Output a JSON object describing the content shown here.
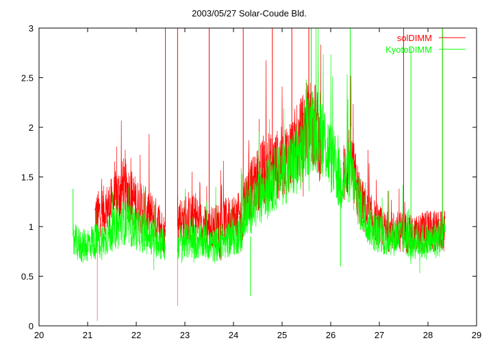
{
  "chart_data": {
    "type": "line",
    "title": "2003/05/27 Solar-Coude Bld.",
    "xlabel": "",
    "ylabel": "",
    "xlim": [
      20,
      29
    ],
    "ylim": [
      0,
      3
    ],
    "x_ticks": [
      "20",
      "21",
      "22",
      "23",
      "24",
      "25",
      "26",
      "27",
      "28",
      "29"
    ],
    "y_ticks": [
      "0",
      "0.5",
      "1",
      "1.5",
      "2",
      "2.5",
      "3"
    ],
    "grid": false,
    "legend_position": "top-right",
    "series": [
      {
        "name": "solDIMM",
        "color": "#ff0000",
        "segments": [
          {
            "x": [
              21.15,
              21.3,
              21.45,
              21.6,
              21.75,
              21.9,
              22.05,
              22.2,
              22.35,
              22.5,
              22.6
            ],
            "y": [
              1.1,
              1.15,
              1.2,
              1.3,
              1.4,
              1.3,
              1.2,
              1.15,
              1.1,
              1.0,
              0.9
            ]
          },
          {
            "x": [
              22.85,
              23.0,
              23.2,
              23.4,
              23.6,
              23.8,
              24.0,
              24.2
            ],
            "y": [
              1.1,
              1.05,
              1.1,
              1.0,
              1.0,
              1.05,
              1.1,
              1.1
            ]
          },
          {
            "x": [
              24.2,
              24.4,
              24.6,
              24.8,
              25.0,
              25.2,
              25.4,
              25.55,
              25.7,
              25.8
            ],
            "y": [
              1.25,
              1.4,
              1.55,
              1.6,
              1.65,
              1.75,
              1.9,
              2.1,
              2.0,
              1.8
            ]
          },
          {
            "x": [
              26.25,
              26.4,
              26.55,
              26.7,
              26.9,
              27.1,
              27.3,
              27.5,
              27.7,
              27.9,
              28.1,
              28.3,
              28.35
            ],
            "y": [
              1.5,
              1.7,
              1.35,
              1.15,
              1.05,
              0.95,
              0.95,
              0.95,
              0.9,
              0.95,
              0.95,
              0.95,
              0.95
            ]
          }
        ],
        "spikes": [
          {
            "x": 21.2,
            "y0": 1.1,
            "y1": 0.05
          },
          {
            "x": 22.6,
            "y0": 1.0,
            "y1": 3.0
          },
          {
            "x": 22.85,
            "y0": 1.0,
            "y1": 3.0
          },
          {
            "x": 22.85,
            "y0": 1.0,
            "y1": 0.2
          },
          {
            "x": 23.5,
            "y0": 1.1,
            "y1": 3.0
          },
          {
            "x": 24.2,
            "y0": 1.2,
            "y1": 3.0
          },
          {
            "x": 24.8,
            "y0": 1.6,
            "y1": 3.0
          },
          {
            "x": 25.2,
            "y0": 1.8,
            "y1": 3.0
          },
          {
            "x": 25.55,
            "y0": 2.0,
            "y1": 3.0
          },
          {
            "x": 27.5,
            "y0": 1.0,
            "y1": 3.0
          },
          {
            "x": 28.3,
            "y0": 1.0,
            "y1": 3.0
          }
        ]
      },
      {
        "name": "KyotoDIMM",
        "color": "#00ff00",
        "segments": [
          {
            "x": [
              20.7,
              20.9,
              21.1,
              21.3,
              21.5,
              21.7,
              21.9,
              22.1,
              22.3,
              22.5,
              22.6
            ],
            "y": [
              0.85,
              0.8,
              0.85,
              0.85,
              0.95,
              1.05,
              1.0,
              0.95,
              0.9,
              0.85,
              0.8
            ]
          },
          {
            "x": [
              22.85,
              23.0,
              23.2,
              23.4,
              23.6,
              23.8,
              24.0,
              24.2
            ],
            "y": [
              0.85,
              0.85,
              0.85,
              0.85,
              0.8,
              0.85,
              0.9,
              0.95
            ]
          },
          {
            "x": [
              24.2,
              24.4,
              24.6,
              24.8,
              25.0,
              25.2,
              25.4,
              25.6,
              25.8,
              26.2,
              26.4,
              26.55
            ],
            "y": [
              1.1,
              1.2,
              1.35,
              1.45,
              1.55,
              1.6,
              1.75,
              2.0,
              1.95,
              1.45,
              1.55,
              1.3
            ]
          },
          {
            "x": [
              26.55,
              26.7,
              26.9,
              27.1,
              27.3,
              27.5,
              27.7,
              27.9,
              28.1,
              28.3,
              28.35
            ],
            "y": [
              1.3,
              1.1,
              0.95,
              0.9,
              0.9,
              0.9,
              0.85,
              0.85,
              0.85,
              0.9,
              0.9
            ]
          }
        ],
        "spikes": [
          {
            "x": 20.7,
            "y0": 0.9,
            "y1": 1.38
          },
          {
            "x": 24.35,
            "y0": 0.9,
            "y1": 0.3
          },
          {
            "x": 25.6,
            "y0": 2.0,
            "y1": 3.0
          },
          {
            "x": 26.2,
            "y0": 1.3,
            "y1": 0.6
          },
          {
            "x": 26.4,
            "y0": 1.5,
            "y1": 3.0
          },
          {
            "x": 27.65,
            "y0": 1.0,
            "y1": 2.8
          },
          {
            "x": 28.3,
            "y0": 0.9,
            "y1": 3.0
          }
        ]
      }
    ]
  }
}
